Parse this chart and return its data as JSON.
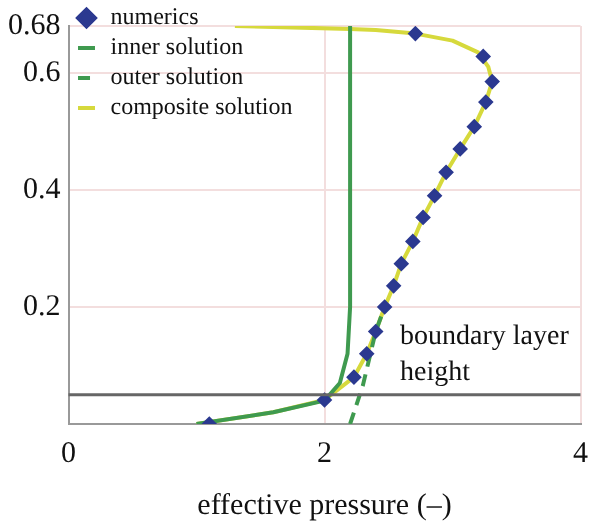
{
  "chart_data": {
    "type": "line",
    "xlabel": "effective pressure (–)",
    "xlim": [
      0,
      4
    ],
    "xticks": [
      0,
      2,
      4
    ],
    "ylim": [
      0,
      0.68
    ],
    "yticks": [
      0.2,
      0.4,
      0.6,
      0.68
    ],
    "grid": true,
    "legend": "top left",
    "series": [
      {
        "name": "numerics",
        "type": "scatter",
        "marker": "diamond",
        "color": "#2b3990",
        "x": [
          1.1,
          2.0,
          2.23,
          2.33,
          2.4,
          2.47,
          2.54,
          2.6,
          2.69,
          2.77,
          2.86,
          2.95,
          3.06,
          3.17,
          3.26,
          3.31,
          3.24,
          2.71
        ],
        "values": [
          0.0,
          0.041,
          0.08,
          0.12,
          0.158,
          0.2,
          0.236,
          0.274,
          0.312,
          0.353,
          0.39,
          0.43,
          0.47,
          0.508,
          0.55,
          0.585,
          0.628,
          0.667
        ]
      },
      {
        "name": "inner solution",
        "color": "#3f9a4f",
        "line_style": "solid",
        "x": [
          1.0,
          1.6,
          2.0,
          2.12,
          2.18,
          2.2,
          2.2
        ],
        "values": [
          0.0,
          0.02,
          0.04,
          0.07,
          0.12,
          0.2,
          0.68
        ]
      },
      {
        "name": "outer solution",
        "color": "#3f9a4f",
        "line_style": "dashed",
        "x": [
          2.2,
          2.3,
          2.4,
          2.47
        ],
        "values": [
          0.0,
          0.066,
          0.158,
          0.2
        ]
      },
      {
        "name": "composite solution",
        "color": "#d6d93c",
        "line_style": "solid",
        "x": [
          1.0,
          1.6,
          2.0,
          2.23,
          2.33,
          2.4,
          2.47,
          2.54,
          2.6,
          2.69,
          2.77,
          2.86,
          2.95,
          3.06,
          3.17,
          3.26,
          3.31,
          3.28,
          3.2,
          3.0,
          2.71,
          2.4,
          2.2,
          1.3
        ],
        "values": [
          0.0,
          0.02,
          0.041,
          0.08,
          0.12,
          0.158,
          0.2,
          0.236,
          0.274,
          0.312,
          0.353,
          0.39,
          0.43,
          0.47,
          0.508,
          0.55,
          0.585,
          0.61,
          0.635,
          0.655,
          0.667,
          0.673,
          0.675,
          0.68
        ]
      }
    ],
    "ref_lines": [
      {
        "axis": "y",
        "value": 0.05,
        "label": "boundary layer height",
        "color": "#666666"
      }
    ]
  }
}
